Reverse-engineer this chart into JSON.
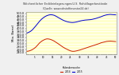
{
  "title": "Wöchentlicher Erdöleinlagerungen/U.S. Rohöllagerbestände",
  "subtitle": "(Quelle: www.rohstoffinvestor24.de)",
  "ylabel": "Mio. Barrel",
  "xlabel_label": "Kalenderwoche",
  "legend_2014": "2014",
  "legend_2015": "2015",
  "outer_background": "#f0f0f0",
  "plot_background": "#ffffcc",
  "blue_color": "#0000cc",
  "red_color": "#cc2200",
  "ylim_min": 230,
  "ylim_max": 510,
  "ytick_values": [
    240.0,
    260.0,
    280.0,
    300.0,
    320.0,
    340.0,
    360.0,
    380.0,
    400.0,
    420.0,
    440.0,
    460.0,
    480.0,
    500.0
  ],
  "blue_data": [
    370.0,
    375.0,
    382.0,
    392.0,
    406.0,
    420.0,
    435.0,
    450.0,
    462.0,
    472.0,
    480.0,
    486.0,
    490.0,
    492.0,
    491.0,
    488.0,
    482.0,
    475.0,
    468.0,
    461.0,
    455.0,
    450.0,
    446.0,
    443.0,
    441.0,
    440.0,
    441.0,
    443.0,
    446.0,
    449.0,
    452.0,
    454.0,
    456.0,
    457.0,
    458.0,
    459.0,
    461.0,
    464.0,
    467.0,
    471.0,
    475.0,
    479.0,
    484.0,
    488.0,
    491.0,
    493.0,
    494.0,
    493.0,
    492.0,
    491.0
  ],
  "red_data": [
    248.0,
    250.0,
    254.0,
    260.0,
    268.0,
    278.0,
    292.0,
    305.0,
    315.0,
    322.0,
    328.0,
    331.0,
    330.0,
    327.0,
    322.0,
    316.0,
    308.0,
    300.0,
    292.0,
    283.0,
    275.0,
    268.0,
    262.0,
    256.0,
    251.0,
    248.0,
    248.0,
    250.0,
    253.0,
    256.0,
    260.0,
    264.0,
    268.0,
    272.0,
    276.0,
    280.0,
    284.0,
    288.0,
    292.0,
    296.0,
    300.0,
    305.0,
    308.0,
    311.0,
    314.0,
    315.0,
    316.0,
    315.0,
    314.0,
    313.0
  ],
  "num_points": 50
}
